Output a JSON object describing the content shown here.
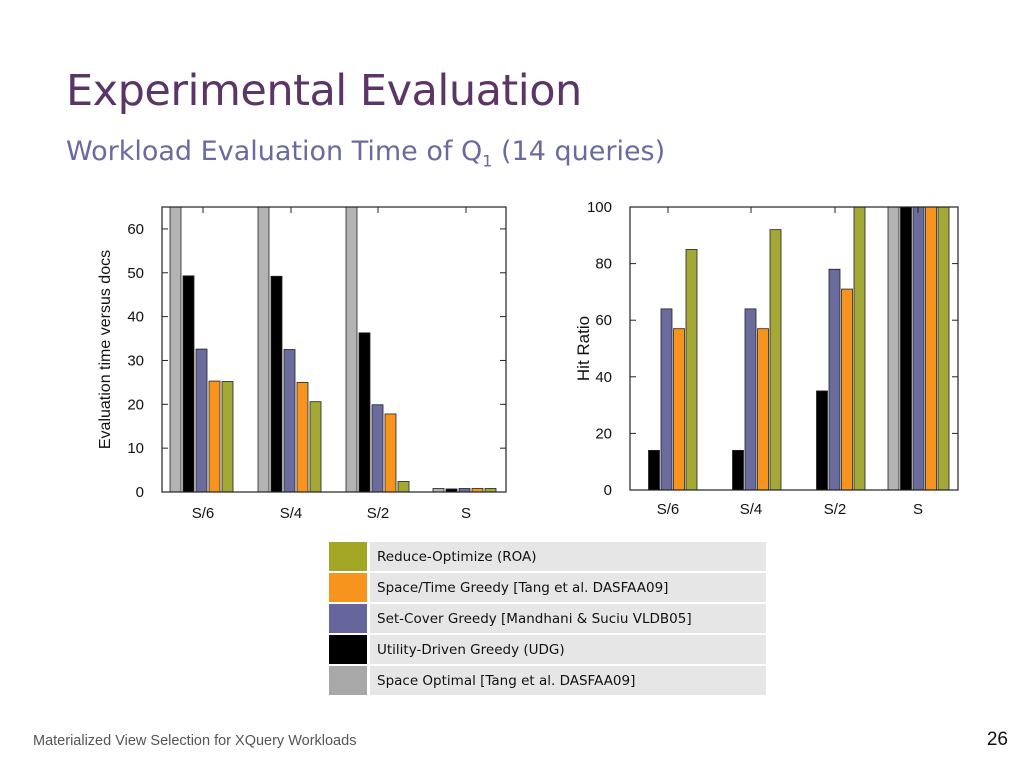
{
  "slide": {
    "title": "Experimental Evaluation",
    "subtitle": {
      "text": "Workload Evaluation Time of Q",
      "subscript": "1",
      "suffix": " (14 queries)"
    },
    "footer": "Materialized View Selection for XQuery Workloads",
    "page_number": "26"
  },
  "legend": [
    {
      "label": "Reduce-Optimize (ROA)",
      "color": "#a3a625"
    },
    {
      "label": "Space/Time Greedy [Tang et al. DASFAA09]",
      "color": "#f7941d"
    },
    {
      "label": "Set-Cover Greedy [Mandhani & Suciu VLDB05]",
      "color": "#66669c"
    },
    {
      "label": "Utility-Driven Greedy (UDG)",
      "color": "#000000"
    },
    {
      "label": "Space Optimal [Tang et al. DASFAA09]",
      "color": "#a8a8a8"
    }
  ],
  "chart_data": [
    {
      "type": "bar",
      "title": "",
      "xlabel": "",
      "ylabel": "Evaluation time versus docs",
      "ylim": [
        0,
        65
      ],
      "yticks": [
        0,
        10,
        20,
        30,
        40,
        50,
        60
      ],
      "categories": [
        "S/6",
        "S/4",
        "S/2",
        "S"
      ],
      "series": [
        {
          "name": "Space Optimal [Tang et al. DASFAA09]",
          "color": "#b3b3b3",
          "values": [
            65,
            65,
            65,
            0.8
          ]
        },
        {
          "name": "Utility-Driven Greedy (UDG)",
          "color": "#000000",
          "values": [
            49.3,
            49.2,
            36.3,
            0.7
          ]
        },
        {
          "name": "Set-Cover Greedy [Mandhani & Suciu VLDB05]",
          "color": "#6b6b9e",
          "values": [
            32.6,
            32.5,
            19.9,
            0.8
          ]
        },
        {
          "name": "Space/Time Greedy [Tang et al. DASFAA09]",
          "color": "#f7941d",
          "values": [
            25.3,
            25.0,
            17.8,
            0.8
          ]
        },
        {
          "name": "Reduce-Optimize (ROA)",
          "color": "#a3a836",
          "values": [
            25.2,
            20.6,
            2.4,
            0.8
          ]
        }
      ]
    },
    {
      "type": "bar",
      "title": "",
      "xlabel": "",
      "ylabel": "Hit Ratio",
      "ylim": [
        0,
        100
      ],
      "yticks": [
        0,
        20,
        40,
        60,
        80,
        100
      ],
      "categories": [
        "S/6",
        "S/4",
        "S/2",
        "S"
      ],
      "series": [
        {
          "name": "Space Optimal [Tang et al. DASFAA09]",
          "color": "#b3b3b3",
          "values": [
            0,
            0,
            0,
            100
          ]
        },
        {
          "name": "Utility-Driven Greedy (UDG)",
          "color": "#000000",
          "values": [
            14,
            14,
            35,
            100
          ]
        },
        {
          "name": "Set-Cover Greedy [Mandhani & Suciu VLDB05]",
          "color": "#6b6b9e",
          "values": [
            64,
            64,
            78,
            100
          ]
        },
        {
          "name": "Space/Time Greedy [Tang et al. DASFAA09]",
          "color": "#f7941d",
          "values": [
            57,
            57,
            71,
            100
          ]
        },
        {
          "name": "Reduce-Optimize (ROA)",
          "color": "#a3a836",
          "values": [
            85,
            92,
            100,
            100
          ]
        }
      ]
    }
  ]
}
